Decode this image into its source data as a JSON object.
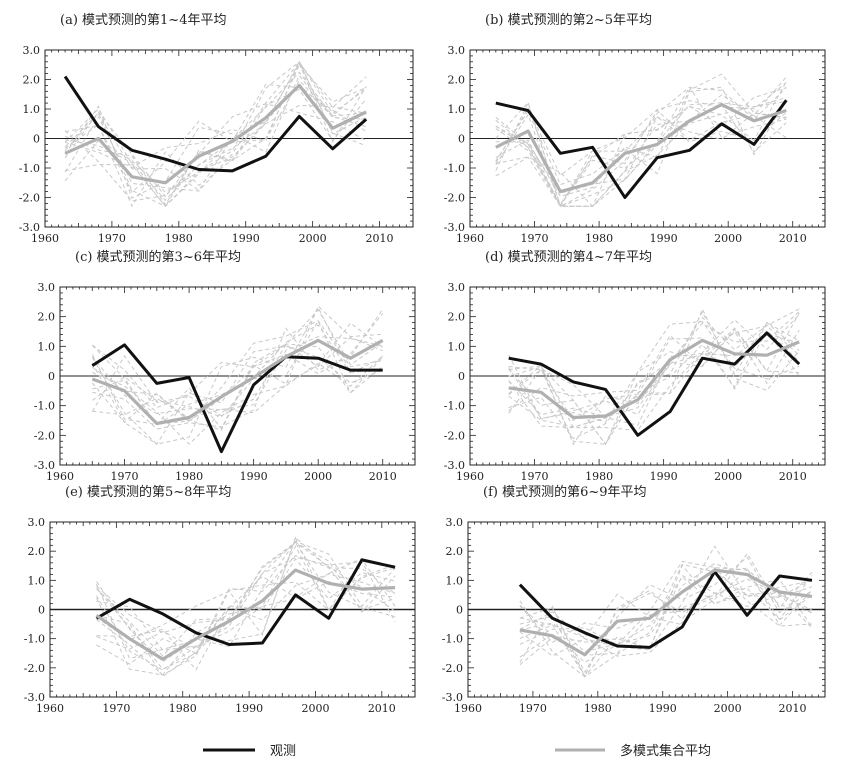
{
  "colors": {
    "observed": "#111111",
    "ensemble": "#b0b0b0",
    "members": "#c8c8c8",
    "zero_line": "#222222"
  },
  "legend": {
    "observed_label": "观测",
    "ensemble_label": "多模式集合平均"
  },
  "chart_data": [
    {
      "type": "line",
      "title": "(a) 模式预测的第1~4年平均",
      "xlim": [
        1960,
        2015
      ],
      "ylim": [
        -3.0,
        3.0
      ],
      "xticks": [
        1960,
        1970,
        1980,
        1990,
        2000,
        2010
      ],
      "yticks": [
        "3.0",
        "2.0",
        "1.0",
        "0",
        "-1.0",
        "-2.0",
        "-3.0"
      ],
      "x": [
        1963,
        1968,
        1973,
        1978,
        1983,
        1988,
        1993,
        1998,
        2003,
        2008
      ],
      "series": [
        {
          "name": "观测",
          "values": [
            2.1,
            0.4,
            -0.4,
            -0.7,
            -1.05,
            -1.1,
            -0.6,
            0.75,
            -0.35,
            0.65
          ]
        },
        {
          "name": "多模式集合平均",
          "values": [
            -0.5,
            0.0,
            -1.3,
            -1.5,
            -0.6,
            -0.1,
            0.7,
            1.8,
            0.35,
            0.9
          ]
        }
      ]
    },
    {
      "type": "line",
      "title": "(b) 模式预测的第2~5年平均",
      "xlim": [
        1960,
        2015
      ],
      "ylim": [
        -3.0,
        3.0
      ],
      "xticks": [
        1960,
        1970,
        1980,
        1990,
        2000,
        2010
      ],
      "yticks": [
        "3.0",
        "2.0",
        "1.0",
        "0",
        "-1.0",
        "-2.0",
        "-3.0"
      ],
      "x": [
        1964,
        1969,
        1974,
        1979,
        1984,
        1989,
        1994,
        1999,
        2004,
        2009
      ],
      "series": [
        {
          "name": "观测",
          "values": [
            1.2,
            0.95,
            -0.5,
            -0.3,
            -2.0,
            -0.65,
            -0.4,
            0.5,
            -0.2,
            1.3
          ]
        },
        {
          "name": "多模式集合平均",
          "values": [
            -0.3,
            0.25,
            -1.8,
            -1.5,
            -0.5,
            -0.2,
            0.6,
            1.15,
            0.6,
            0.95
          ]
        }
      ]
    },
    {
      "type": "line",
      "title": "(c) 模式预测的第3~6年平均",
      "xlim": [
        1960,
        2015
      ],
      "ylim": [
        -3.0,
        3.0
      ],
      "xticks": [
        1960,
        1970,
        1980,
        1990,
        2000,
        2010
      ],
      "yticks": [
        "3.0",
        "2.0",
        "1.0",
        "0",
        "-1.0",
        "-2.0",
        "-3.0"
      ],
      "x": [
        1965,
        1970,
        1975,
        1980,
        1985,
        1990,
        1995,
        2000,
        2005,
        2010
      ],
      "series": [
        {
          "name": "观测",
          "values": [
            0.35,
            1.05,
            -0.25,
            -0.05,
            -2.55,
            -0.3,
            0.65,
            0.6,
            0.2,
            0.2
          ]
        },
        {
          "name": "多模式集合平均",
          "values": [
            -0.1,
            -0.5,
            -1.6,
            -1.4,
            -0.7,
            -0.05,
            0.65,
            1.2,
            0.6,
            1.2
          ]
        }
      ]
    },
    {
      "type": "line",
      "title": "(d) 模式预测的第4~7年平均",
      "xlim": [
        1960,
        2015
      ],
      "ylim": [
        -3.0,
        3.0
      ],
      "xticks": [
        1960,
        1970,
        1980,
        1990,
        2000,
        2010
      ],
      "yticks": [
        "3.0",
        "2.0",
        "1.0",
        "0",
        "-1.0",
        "-2.0",
        "-3.0"
      ],
      "x": [
        1966,
        1971,
        1976,
        1981,
        1986,
        1991,
        1996,
        2001,
        2006,
        2011
      ],
      "series": [
        {
          "name": "观测",
          "values": [
            0.6,
            0.4,
            -0.2,
            -0.45,
            -2.0,
            -1.2,
            0.6,
            0.4,
            1.45,
            0.4
          ]
        },
        {
          "name": "多模式集合平均",
          "values": [
            -0.4,
            -0.55,
            -1.4,
            -1.35,
            -0.8,
            0.55,
            1.2,
            0.75,
            0.7,
            1.15
          ]
        }
      ]
    },
    {
      "type": "line",
      "title": "(e) 模式预测的第5~8年平均",
      "xlim": [
        1960,
        2015
      ],
      "ylim": [
        -3.0,
        3.0
      ],
      "xticks": [
        1960,
        1970,
        1980,
        1990,
        2000,
        2010
      ],
      "yticks": [
        "3.0",
        "2.0",
        "1.0",
        "0",
        "-1.0",
        "-2.0",
        "-3.0"
      ],
      "x": [
        1967,
        1972,
        1977,
        1982,
        1987,
        1992,
        1997,
        2002,
        2007,
        2012
      ],
      "series": [
        {
          "name": "观测",
          "values": [
            -0.3,
            0.35,
            -0.15,
            -0.8,
            -1.2,
            -1.15,
            0.5,
            -0.3,
            1.7,
            1.45
          ]
        },
        {
          "name": "多模式集合平均",
          "values": [
            -0.2,
            -1.0,
            -1.7,
            -1.0,
            -0.4,
            0.3,
            1.35,
            0.9,
            0.7,
            0.75
          ]
        }
      ]
    },
    {
      "type": "line",
      "title": "(f) 模式预测的第6~9年平均",
      "xlim": [
        1960,
        2015
      ],
      "ylim": [
        -3.0,
        3.0
      ],
      "xticks": [
        1960,
        1970,
        1980,
        1990,
        2000,
        2010
      ],
      "yticks": [
        "3.0",
        "2.0",
        "1.0",
        "0",
        "-1.0",
        "-2.0",
        "-3.0"
      ],
      "x": [
        1968,
        1973,
        1978,
        1983,
        1988,
        1993,
        1998,
        2003,
        2008,
        2013
      ],
      "series": [
        {
          "name": "观测",
          "values": [
            0.85,
            -0.3,
            -0.8,
            -1.25,
            -1.3,
            -0.6,
            1.3,
            -0.2,
            1.15,
            1.0
          ]
        },
        {
          "name": "多模式集合平均",
          "values": [
            -0.7,
            -0.9,
            -1.55,
            -0.4,
            -0.3,
            0.6,
            1.35,
            1.2,
            0.6,
            0.45
          ]
        }
      ]
    }
  ]
}
